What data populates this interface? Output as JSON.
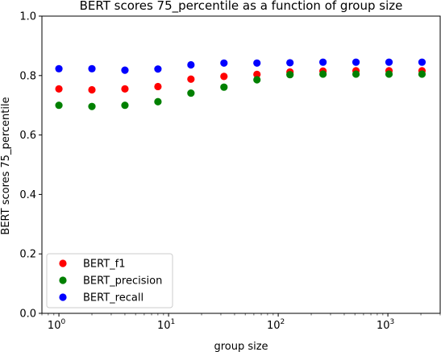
{
  "chart_data": {
    "type": "scatter",
    "title": "BERT scores 75_percentile as a function of group size",
    "xlabel": "group size",
    "ylabel": "BERT scores 75_percentile",
    "xscale": "log",
    "xlim": [
      0.7,
      3000
    ],
    "ylim": [
      0.0,
      1.0
    ],
    "yticks": [
      "0.0",
      "0.2",
      "0.4",
      "0.6",
      "0.8",
      "1.0"
    ],
    "xticks": [
      {
        "base": "10",
        "exp": "0"
      },
      {
        "base": "10",
        "exp": "1"
      },
      {
        "base": "10",
        "exp": "2"
      },
      {
        "base": "10",
        "exp": "3"
      }
    ],
    "legend_position": "lower-left",
    "grid": false,
    "x": [
      1,
      2,
      4,
      8,
      16,
      32,
      64,
      128,
      256,
      512,
      1024,
      2048
    ],
    "series": [
      {
        "name": "BERT_f1",
        "color": "#ff0000",
        "values": [
          0.755,
          0.752,
          0.755,
          0.763,
          0.788,
          0.797,
          0.804,
          0.812,
          0.815,
          0.816,
          0.816,
          0.816
        ]
      },
      {
        "name": "BERT_precision",
        "color": "#008000",
        "values": [
          0.7,
          0.696,
          0.7,
          0.712,
          0.741,
          0.761,
          0.786,
          0.803,
          0.805,
          0.805,
          0.805,
          0.805
        ]
      },
      {
        "name": "BERT_recall",
        "color": "#0000ff",
        "values": [
          0.823,
          0.823,
          0.818,
          0.822,
          0.836,
          0.842,
          0.842,
          0.843,
          0.845,
          0.845,
          0.845,
          0.845
        ]
      }
    ]
  }
}
